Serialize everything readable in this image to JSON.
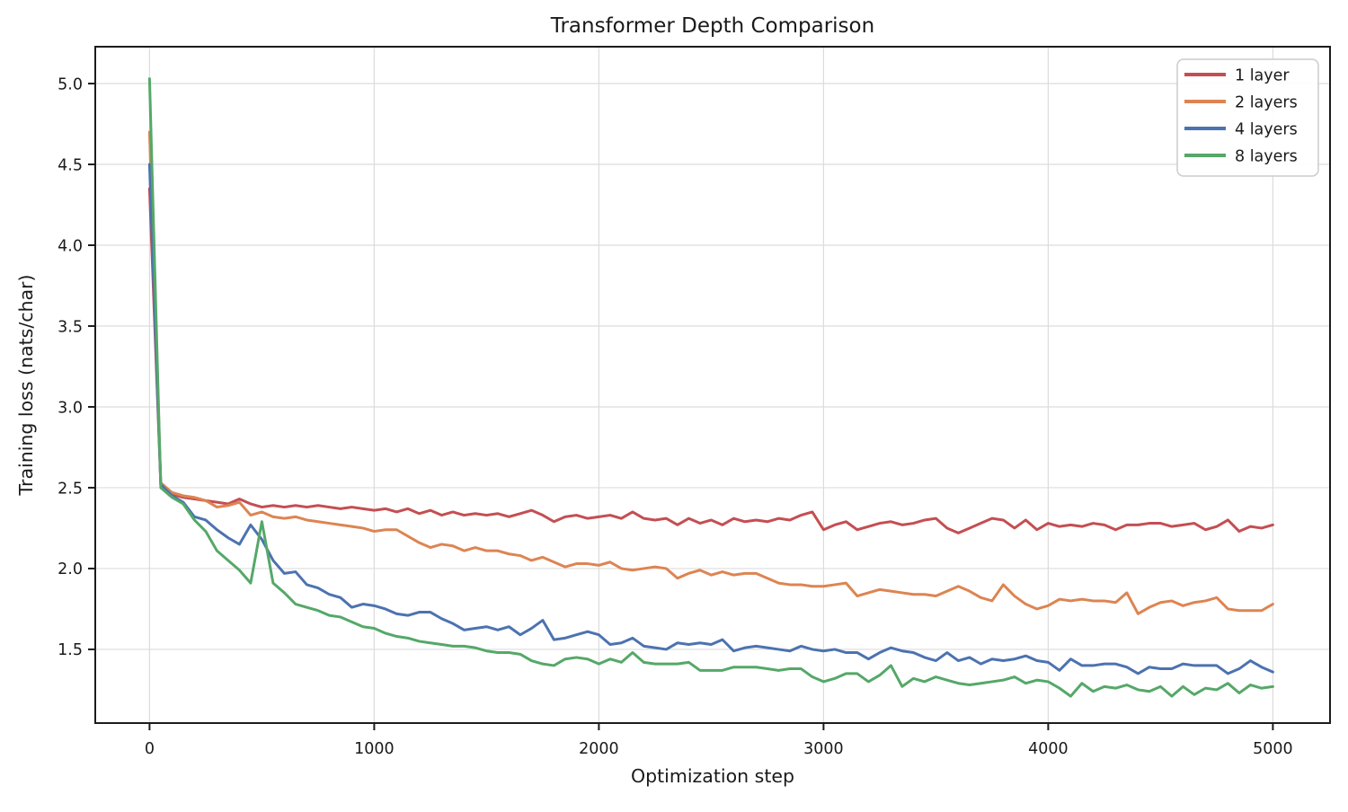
{
  "figure": {
    "title": "Transformer Depth Comparison",
    "xlabel": "Optimization step",
    "ylabel": "Training loss (nats/char)"
  },
  "chart_data": {
    "type": "line",
    "title": "Transformer Depth Comparison",
    "xlabel": "Optimization step",
    "ylabel": "Training loss (nats/char)",
    "grid": true,
    "legend_position": "upper right",
    "line_width": 3,
    "xlim": [
      -241.6,
      5254.4
    ],
    "ylim": [
      1.044,
      5.228
    ],
    "xticks": [
      0,
      1000,
      2000,
      3000,
      4000,
      5000
    ],
    "yticks": [
      1.5,
      2.0,
      2.5,
      3.0,
      3.5,
      4.0,
      4.5,
      5.0
    ],
    "colors": {
      "grid": "#dcdcdc",
      "spine": "#1c1c1c",
      "text": "#1a1a1a",
      "legend_border": "#cccccc"
    },
    "x": [
      0,
      50,
      100,
      150,
      200,
      250,
      300,
      350,
      400,
      450,
      500,
      550,
      600,
      650,
      700,
      750,
      800,
      850,
      900,
      950,
      1000,
      1050,
      1100,
      1150,
      1200,
      1250,
      1300,
      1350,
      1400,
      1450,
      1500,
      1550,
      1600,
      1650,
      1700,
      1750,
      1800,
      1850,
      1900,
      1950,
      2000,
      2050,
      2100,
      2150,
      2200,
      2250,
      2300,
      2350,
      2400,
      2450,
      2500,
      2550,
      2600,
      2650,
      2700,
      2750,
      2800,
      2850,
      2900,
      2950,
      3000,
      3050,
      3100,
      3150,
      3200,
      3250,
      3300,
      3350,
      3400,
      3450,
      3500,
      3550,
      3600,
      3650,
      3700,
      3750,
      3800,
      3850,
      3900,
      3950,
      4000,
      4050,
      4100,
      4150,
      4200,
      4250,
      4300,
      4350,
      4400,
      4450,
      4500,
      4550,
      4600,
      4650,
      4700,
      4750,
      4800,
      4850,
      4900,
      4950,
      5000
    ],
    "series": [
      {
        "name": "1 layer",
        "color": "#c44e52",
        "values": [
          4.35,
          2.52,
          2.46,
          2.44,
          2.43,
          2.42,
          2.41,
          2.4,
          2.43,
          2.4,
          2.38,
          2.39,
          2.38,
          2.39,
          2.38,
          2.39,
          2.38,
          2.37,
          2.38,
          2.37,
          2.36,
          2.37,
          2.35,
          2.37,
          2.34,
          2.36,
          2.33,
          2.35,
          2.33,
          2.34,
          2.33,
          2.34,
          2.32,
          2.34,
          2.36,
          2.33,
          2.29,
          2.32,
          2.33,
          2.31,
          2.32,
          2.33,
          2.31,
          2.35,
          2.31,
          2.3,
          2.31,
          2.27,
          2.31,
          2.28,
          2.3,
          2.27,
          2.31,
          2.29,
          2.3,
          2.29,
          2.31,
          2.3,
          2.33,
          2.35,
          2.24,
          2.27,
          2.29,
          2.24,
          2.26,
          2.28,
          2.29,
          2.27,
          2.28,
          2.3,
          2.31,
          2.25,
          2.22,
          2.25,
          2.28,
          2.31,
          2.3,
          2.25,
          2.3,
          2.24,
          2.28,
          2.26,
          2.27,
          2.26,
          2.28,
          2.27,
          2.24,
          2.27,
          2.27,
          2.28,
          2.28,
          2.26,
          2.27,
          2.28,
          2.24,
          2.26,
          2.3,
          2.23,
          2.26,
          2.25,
          2.27
        ]
      },
      {
        "name": "2 layers",
        "color": "#dd8452",
        "values": [
          4.7,
          2.53,
          2.47,
          2.45,
          2.44,
          2.42,
          2.38,
          2.39,
          2.41,
          2.33,
          2.35,
          2.32,
          2.31,
          2.32,
          2.3,
          2.29,
          2.28,
          2.27,
          2.26,
          2.25,
          2.23,
          2.24,
          2.24,
          2.2,
          2.16,
          2.13,
          2.15,
          2.14,
          2.11,
          2.13,
          2.11,
          2.11,
          2.09,
          2.08,
          2.05,
          2.07,
          2.04,
          2.01,
          2.03,
          2.03,
          2.02,
          2.04,
          2.0,
          1.99,
          2.0,
          2.01,
          2.0,
          1.94,
          1.97,
          1.99,
          1.96,
          1.98,
          1.96,
          1.97,
          1.97,
          1.94,
          1.91,
          1.9,
          1.9,
          1.89,
          1.89,
          1.9,
          1.91,
          1.83,
          1.85,
          1.87,
          1.86,
          1.85,
          1.84,
          1.84,
          1.83,
          1.86,
          1.89,
          1.86,
          1.82,
          1.8,
          1.9,
          1.83,
          1.78,
          1.75,
          1.77,
          1.81,
          1.8,
          1.81,
          1.8,
          1.8,
          1.79,
          1.85,
          1.72,
          1.76,
          1.79,
          1.8,
          1.77,
          1.79,
          1.8,
          1.82,
          1.75,
          1.74,
          1.74,
          1.74,
          1.78
        ]
      },
      {
        "name": "4 layers",
        "color": "#4c72b0",
        "values": [
          4.5,
          2.52,
          2.45,
          2.41,
          2.32,
          2.3,
          2.24,
          2.19,
          2.15,
          2.27,
          2.18,
          2.05,
          1.97,
          1.98,
          1.9,
          1.88,
          1.84,
          1.82,
          1.76,
          1.78,
          1.77,
          1.75,
          1.72,
          1.71,
          1.73,
          1.73,
          1.69,
          1.66,
          1.62,
          1.63,
          1.64,
          1.62,
          1.64,
          1.59,
          1.63,
          1.68,
          1.56,
          1.57,
          1.59,
          1.61,
          1.59,
          1.53,
          1.54,
          1.57,
          1.52,
          1.51,
          1.5,
          1.54,
          1.53,
          1.54,
          1.53,
          1.56,
          1.49,
          1.51,
          1.52,
          1.51,
          1.5,
          1.49,
          1.52,
          1.5,
          1.49,
          1.5,
          1.48,
          1.48,
          1.44,
          1.48,
          1.51,
          1.49,
          1.48,
          1.45,
          1.43,
          1.48,
          1.43,
          1.45,
          1.41,
          1.44,
          1.43,
          1.44,
          1.46,
          1.43,
          1.42,
          1.37,
          1.44,
          1.4,
          1.4,
          1.41,
          1.41,
          1.39,
          1.35,
          1.39,
          1.38,
          1.38,
          1.41,
          1.4,
          1.4,
          1.4,
          1.35,
          1.38,
          1.43,
          1.39,
          1.36
        ]
      },
      {
        "name": "8 layers",
        "color": "#55a868",
        "values": [
          5.03,
          2.5,
          2.44,
          2.4,
          2.3,
          2.23,
          2.11,
          2.05,
          1.99,
          1.91,
          2.29,
          1.91,
          1.85,
          1.78,
          1.76,
          1.74,
          1.71,
          1.7,
          1.67,
          1.64,
          1.63,
          1.6,
          1.58,
          1.57,
          1.55,
          1.54,
          1.53,
          1.52,
          1.52,
          1.51,
          1.49,
          1.48,
          1.48,
          1.47,
          1.43,
          1.41,
          1.4,
          1.44,
          1.45,
          1.44,
          1.41,
          1.44,
          1.42,
          1.48,
          1.42,
          1.41,
          1.41,
          1.41,
          1.42,
          1.37,
          1.37,
          1.37,
          1.39,
          1.39,
          1.39,
          1.38,
          1.37,
          1.38,
          1.38,
          1.33,
          1.3,
          1.32,
          1.35,
          1.35,
          1.3,
          1.34,
          1.4,
          1.27,
          1.32,
          1.3,
          1.33,
          1.31,
          1.29,
          1.28,
          1.29,
          1.3,
          1.31,
          1.33,
          1.29,
          1.31,
          1.3,
          1.26,
          1.21,
          1.29,
          1.24,
          1.27,
          1.26,
          1.28,
          1.25,
          1.24,
          1.27,
          1.21,
          1.27,
          1.22,
          1.26,
          1.25,
          1.29,
          1.23,
          1.28,
          1.26,
          1.27
        ]
      }
    ]
  }
}
